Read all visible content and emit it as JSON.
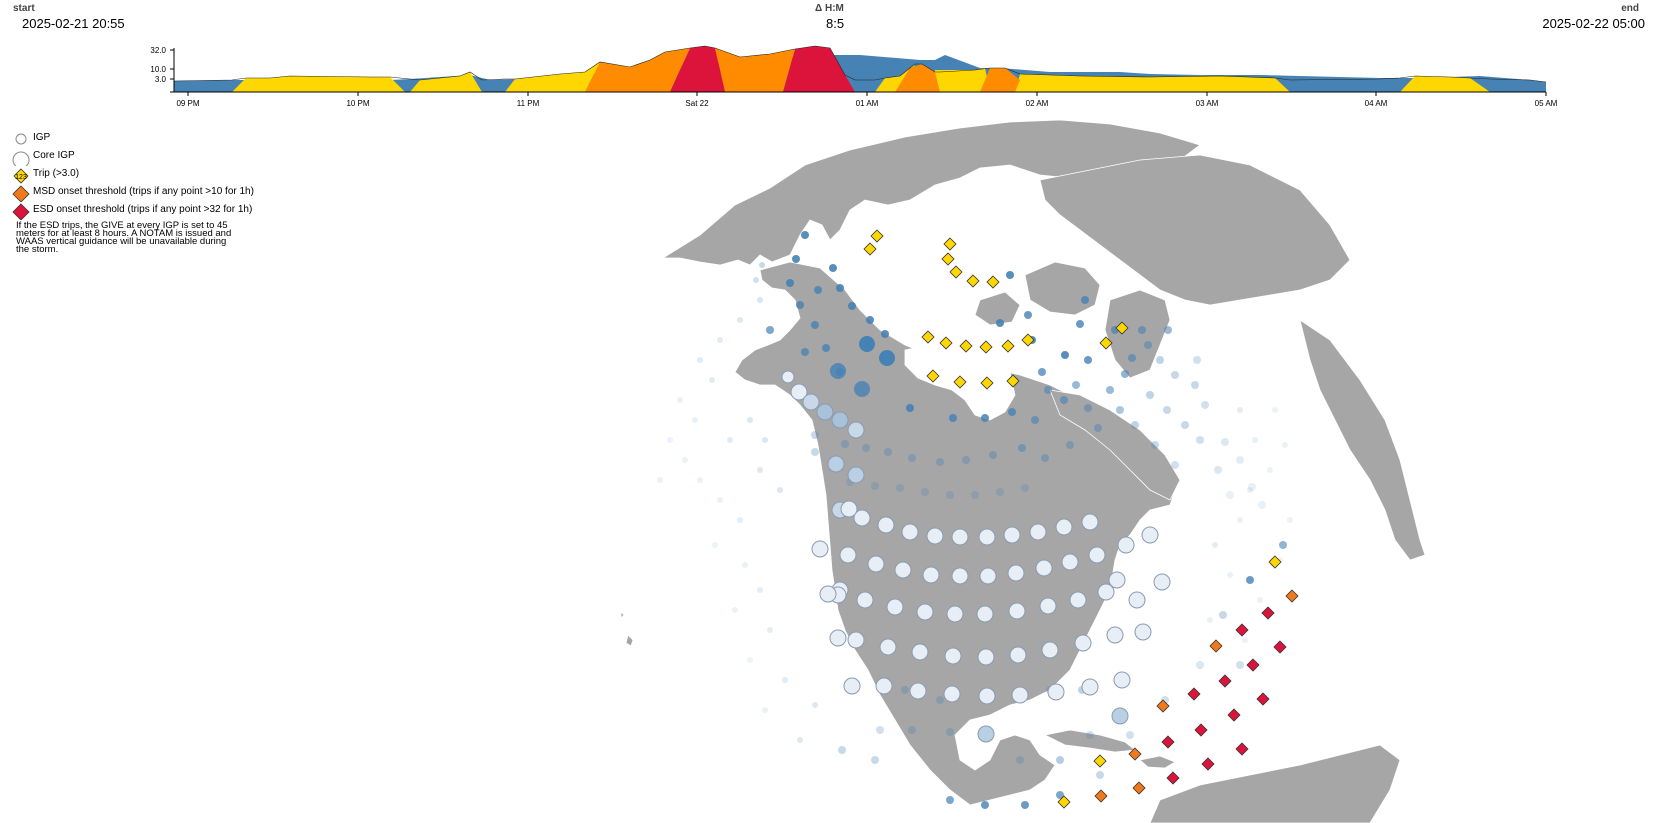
{
  "header": {
    "start_label": "start",
    "start_value": "2025-02-21 20:55",
    "delta_label": "Δ H:M",
    "delta_value": "8:5",
    "end_label": "end",
    "end_value": "2025-02-22 05:00"
  },
  "timeline": {
    "y_ticks": [
      "32.0",
      "10.0",
      "3.0"
    ],
    "x_ticks": [
      "09 PM",
      "10 PM",
      "11 PM",
      "Sat 22",
      "01 AM",
      "02 AM",
      "03 AM",
      "04 AM",
      "05 AM"
    ],
    "colors": {
      "quiet": "#4682b4",
      "trip": "#ffd700",
      "msd": "#ff8c00",
      "esd": "#dc143c"
    }
  },
  "legend": {
    "items": [
      {
        "label": "IGP",
        "symbol": "small-circle-icon"
      },
      {
        "label": "Core IGP",
        "symbol": "large-circle-icon"
      },
      {
        "label": "Trip (>3.0)",
        "symbol": "yellow-diamond-icon",
        "badge": "123"
      },
      {
        "label": "MSD onset threshold (trips if any point >10 for 1h)",
        "symbol": "orange-diamond-icon"
      },
      {
        "label": "ESD onset threshold (trips if any point >32 for 1h)",
        "symbol": "red-diamond-icon"
      }
    ],
    "note": "If the ESD trips, the GIVE at every IGP is set to 45 meters for at least 8 hours. A NOTAM is issued and WAAS vertical guidance will be unavailable during the storm."
  },
  "map": {
    "land_color": "#a6a6a6",
    "core_fill": "#e8eef5",
    "trip_color": "#ffd700",
    "msd_color": "#f07a1a",
    "esd_color": "#dc143c"
  }
}
